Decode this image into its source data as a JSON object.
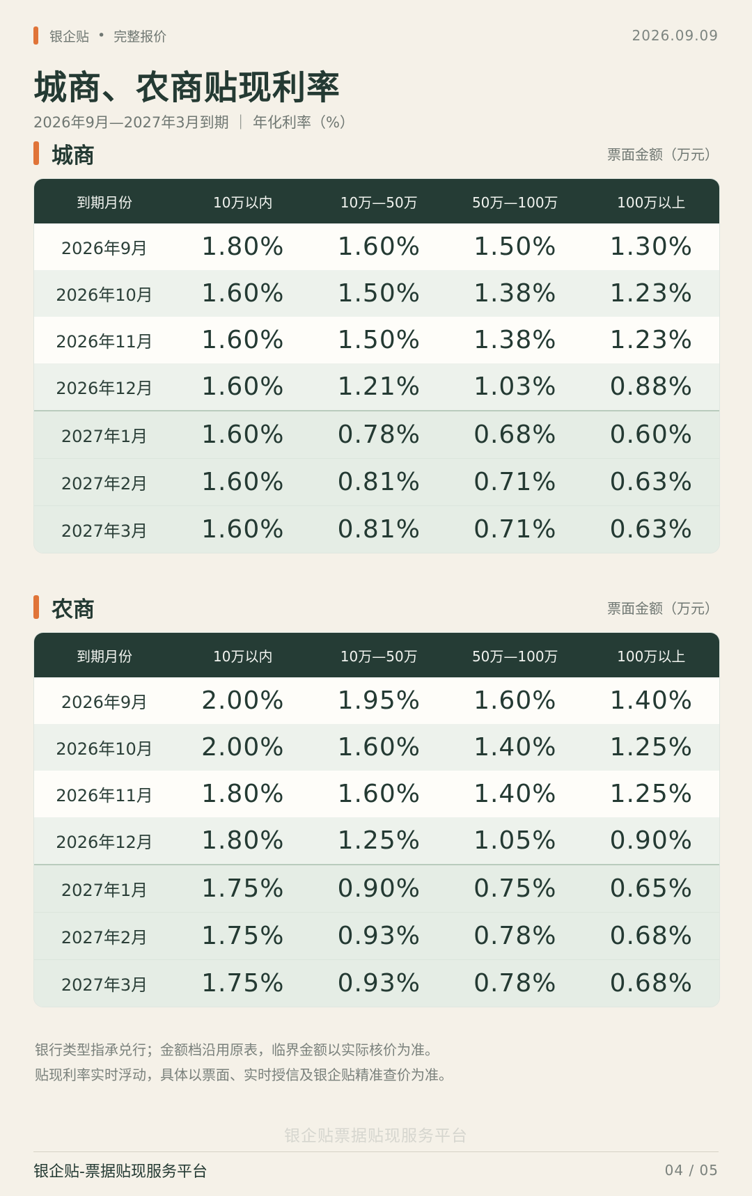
{
  "header": {
    "brand": "银企贴",
    "separator": "•",
    "section": "完整报价",
    "date": "2026.09.09",
    "title": "城商、农商贴现利率",
    "subtitle": "2026年9月—2027年3月到期 ｜ 年化利率（%）"
  },
  "columns": [
    "到期月份",
    "10万以内",
    "10万—50万",
    "50万—100万",
    "100万以上"
  ],
  "tables": [
    {
      "name": "城商",
      "unit": "票面金额（万元）",
      "rows": [
        [
          "2026年9月",
          "1.80%",
          "1.60%",
          "1.50%",
          "1.30%"
        ],
        [
          "2026年10月",
          "1.60%",
          "1.50%",
          "1.38%",
          "1.23%"
        ],
        [
          "2026年11月",
          "1.60%",
          "1.50%",
          "1.38%",
          "1.23%"
        ],
        [
          "2026年12月",
          "1.60%",
          "1.21%",
          "1.03%",
          "0.88%"
        ],
        [
          "2027年1月",
          "1.60%",
          "0.78%",
          "0.68%",
          "0.60%"
        ],
        [
          "2027年2月",
          "1.60%",
          "0.81%",
          "0.71%",
          "0.63%"
        ],
        [
          "2027年3月",
          "1.60%",
          "0.81%",
          "0.71%",
          "0.63%"
        ]
      ]
    },
    {
      "name": "农商",
      "unit": "票面金额（万元）",
      "rows": [
        [
          "2026年9月",
          "2.00%",
          "1.95%",
          "1.60%",
          "1.40%"
        ],
        [
          "2026年10月",
          "2.00%",
          "1.60%",
          "1.40%",
          "1.25%"
        ],
        [
          "2026年11月",
          "1.80%",
          "1.60%",
          "1.40%",
          "1.25%"
        ],
        [
          "2026年12月",
          "1.80%",
          "1.25%",
          "1.05%",
          "0.90%"
        ],
        [
          "2027年1月",
          "1.75%",
          "0.90%",
          "0.75%",
          "0.65%"
        ],
        [
          "2027年2月",
          "1.75%",
          "0.93%",
          "0.78%",
          "0.68%"
        ],
        [
          "2027年3月",
          "1.75%",
          "0.93%",
          "0.78%",
          "0.68%"
        ]
      ]
    }
  ],
  "notes": [
    "银行类型指承兑行；金额档沿用原表，临界金额以实际核价为准。",
    "贴现利率实时浮动，具体以票面、实时授信及银企贴精准查价为准。"
  ],
  "watermark": "银企贴票据贴现服务平台",
  "footer": {
    "brand": "银企贴-票据贴现服务平台",
    "page": "04 / 05"
  },
  "colors": {
    "accent": "#e07438",
    "header_bg": "#253c35",
    "page_bg": "#f5f1e8"
  }
}
